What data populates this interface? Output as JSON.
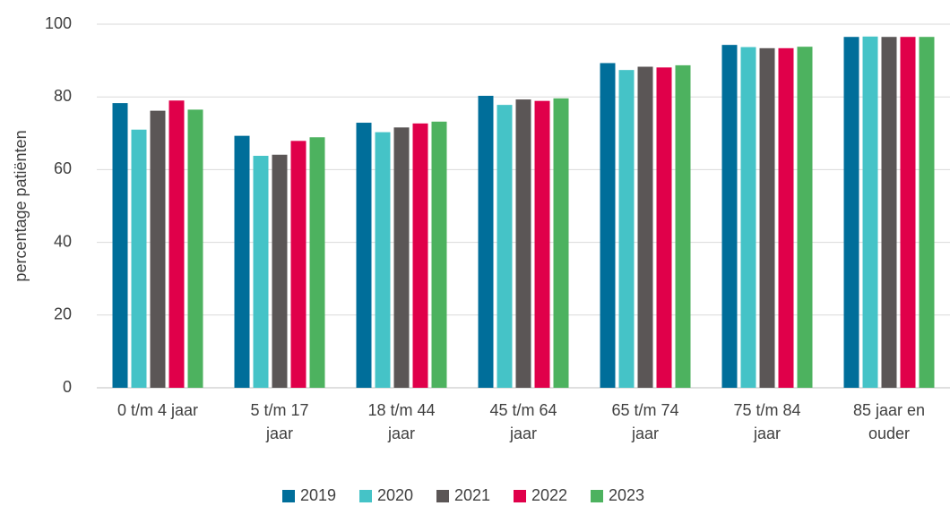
{
  "chart_data": {
    "type": "bar",
    "y_label": "percentage patiënten",
    "categories": [
      "0 t/m 4 jaar",
      "5 t/m 17 jaar",
      "18 t/m 44 jaar",
      "45 t/m 64 jaar",
      "65 t/m 74 jaar",
      "75 t/m 84 jaar",
      "85 jaar en ouder"
    ],
    "series": [
      {
        "name": "2019",
        "color": "#006e9a",
        "values": [
          78.3,
          69.3,
          72.9,
          80.3,
          89.3,
          94.3,
          96.5
        ]
      },
      {
        "name": "2020",
        "color": "#45c3c7",
        "values": [
          71.0,
          63.8,
          70.3,
          77.8,
          87.4,
          93.7,
          96.6
        ]
      },
      {
        "name": "2021",
        "color": "#5b5656",
        "values": [
          76.2,
          64.1,
          71.6,
          79.3,
          88.3,
          93.4,
          96.5
        ]
      },
      {
        "name": "2022",
        "color": "#e0004a",
        "values": [
          79.0,
          67.9,
          72.7,
          78.9,
          88.1,
          93.4,
          96.5
        ]
      },
      {
        "name": "2023",
        "color": "#4db25f",
        "values": [
          76.5,
          68.9,
          73.2,
          79.6,
          88.7,
          93.8,
          96.5
        ]
      }
    ],
    "ylim": [
      0,
      100
    ],
    "yticks": [
      0,
      20,
      40,
      60,
      80,
      100
    ],
    "grid": true,
    "legend": "bottom"
  }
}
